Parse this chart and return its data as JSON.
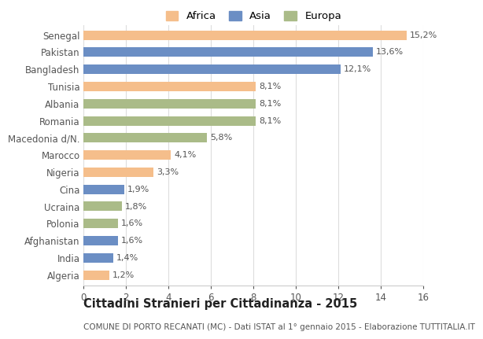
{
  "categories": [
    "Senegal",
    "Pakistan",
    "Bangladesh",
    "Tunisia",
    "Albania",
    "Romania",
    "Macedonia d/N.",
    "Marocco",
    "Nigeria",
    "Cina",
    "Ucraina",
    "Polonia",
    "Afghanistan",
    "India",
    "Algeria"
  ],
  "values": [
    15.2,
    13.6,
    12.1,
    8.1,
    8.1,
    8.1,
    5.8,
    4.1,
    3.3,
    1.9,
    1.8,
    1.6,
    1.6,
    1.4,
    1.2
  ],
  "labels": [
    "15,2%",
    "13,6%",
    "12,1%",
    "8,1%",
    "8,1%",
    "8,1%",
    "5,8%",
    "4,1%",
    "3,3%",
    "1,9%",
    "1,8%",
    "1,6%",
    "1,6%",
    "1,4%",
    "1,2%"
  ],
  "continent": [
    "Africa",
    "Asia",
    "Asia",
    "Africa",
    "Europa",
    "Europa",
    "Europa",
    "Africa",
    "Africa",
    "Asia",
    "Europa",
    "Europa",
    "Asia",
    "Asia",
    "Africa"
  ],
  "colors": {
    "Africa": "#F5BE8B",
    "Asia": "#6B8EC4",
    "Europa": "#AABB88"
  },
  "legend_labels": [
    "Africa",
    "Asia",
    "Europa"
  ],
  "legend_colors": [
    "#F5BE8B",
    "#6B8EC4",
    "#AABB88"
  ],
  "title": "Cittadini Stranieri per Cittadinanza - 2015",
  "subtitle": "COMUNE DI PORTO RECANATI (MC) - Dati ISTAT al 1° gennaio 2015 - Elaborazione TUTTITALIA.IT",
  "xlim": [
    0,
    16
  ],
  "xticks": [
    0,
    2,
    4,
    6,
    8,
    10,
    12,
    14,
    16
  ],
  "background_color": "#ffffff",
  "grid_color": "#dddddd",
  "bar_height": 0.55,
  "title_fontsize": 10.5,
  "subtitle_fontsize": 7.5,
  "label_fontsize": 8,
  "tick_fontsize": 8.5,
  "legend_fontsize": 9.5
}
